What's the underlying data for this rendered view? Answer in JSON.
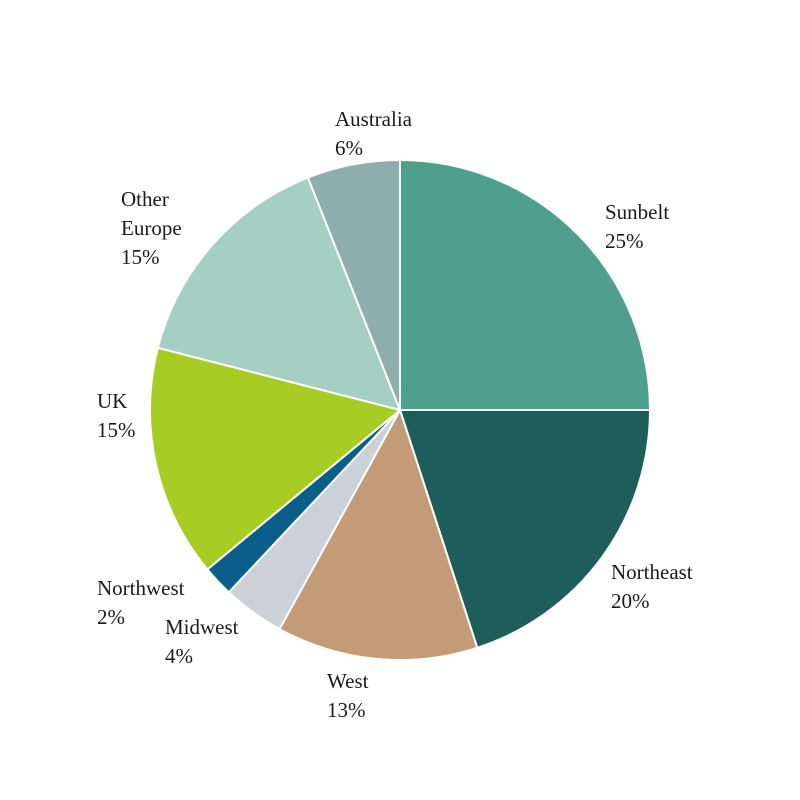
{
  "chart_data": {
    "type": "pie",
    "categories": [
      "Sunbelt",
      "Northeast",
      "West",
      "Midwest",
      "Northwest",
      "UK",
      "Other Europe",
      "Australia"
    ],
    "values": [
      25,
      20,
      13,
      4,
      2,
      15,
      15,
      6
    ],
    "value_labels": [
      "25%",
      "20%",
      "13%",
      "4%",
      "2%",
      "15%",
      "15%",
      "6%"
    ],
    "colors": [
      "#4e9f8b",
      "#1d5e5a",
      "#c39b76",
      "#cbd0d9",
      "#0b5e8a",
      "#a7cd25",
      "#a6cfc4",
      "#8eaead"
    ]
  }
}
